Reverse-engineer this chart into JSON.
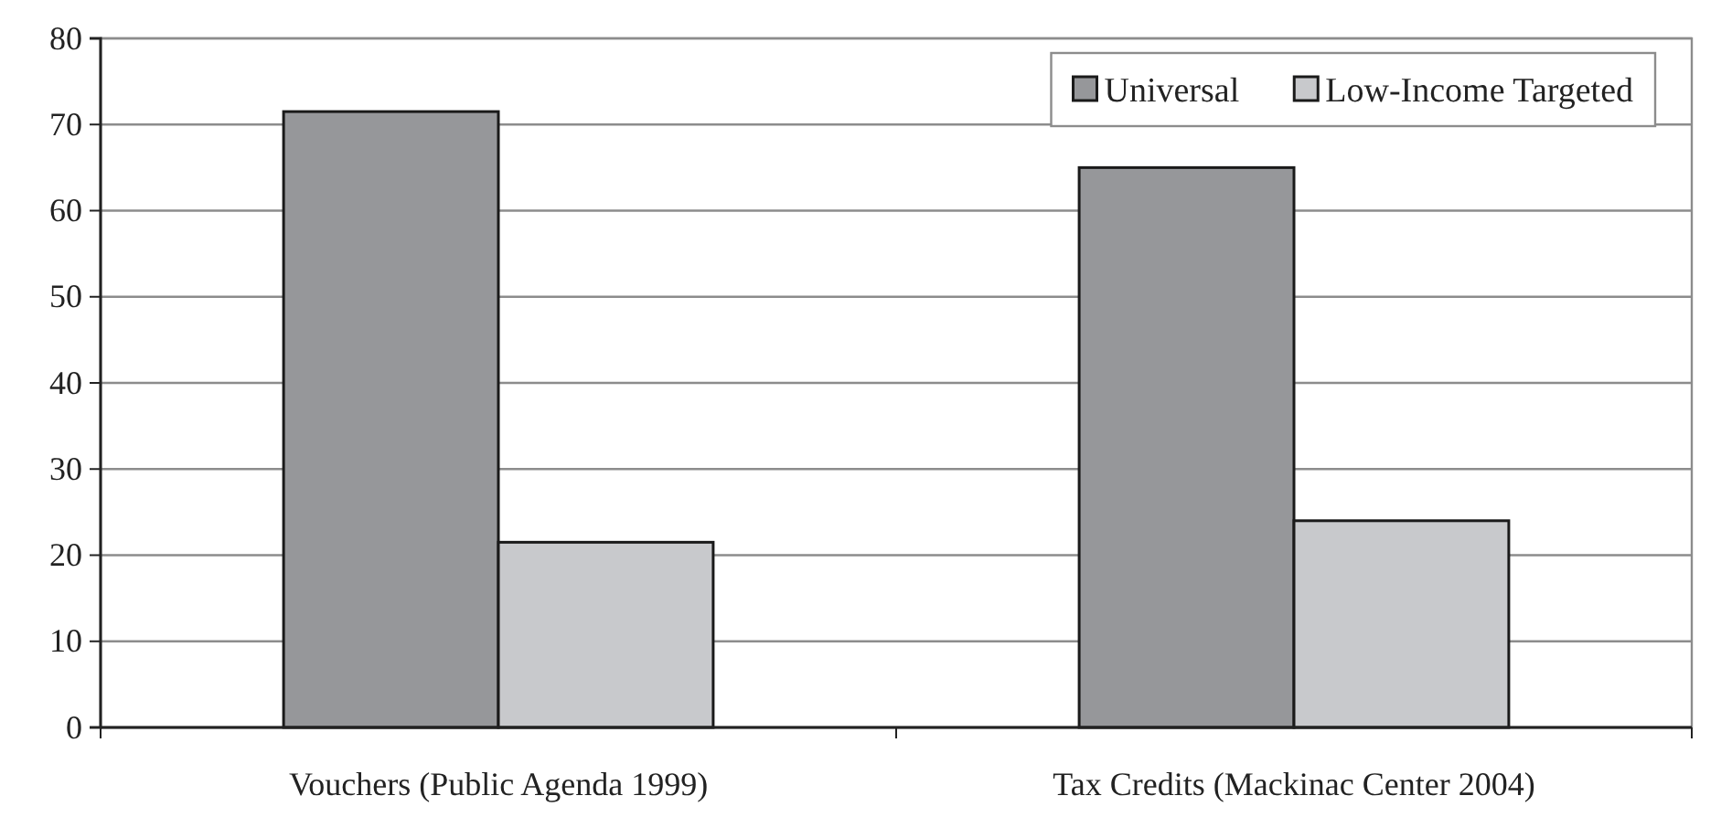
{
  "chart_data": {
    "type": "bar",
    "categories": [
      "Vouchers (Public Agenda 1999)",
      "Tax Credits (Mackinac Center 2004)"
    ],
    "series": [
      {
        "name": "Universal",
        "color": "#96979a",
        "values": [
          71.5,
          65
        ]
      },
      {
        "name": "Low-Income Targeted",
        "color": "#c8c9cc",
        "values": [
          21.5,
          24
        ]
      }
    ],
    "ylim": [
      0,
      80
    ],
    "yticks": [
      0,
      10,
      20,
      30,
      40,
      50,
      60,
      70,
      80
    ],
    "grid": "y",
    "legend": "top right"
  }
}
